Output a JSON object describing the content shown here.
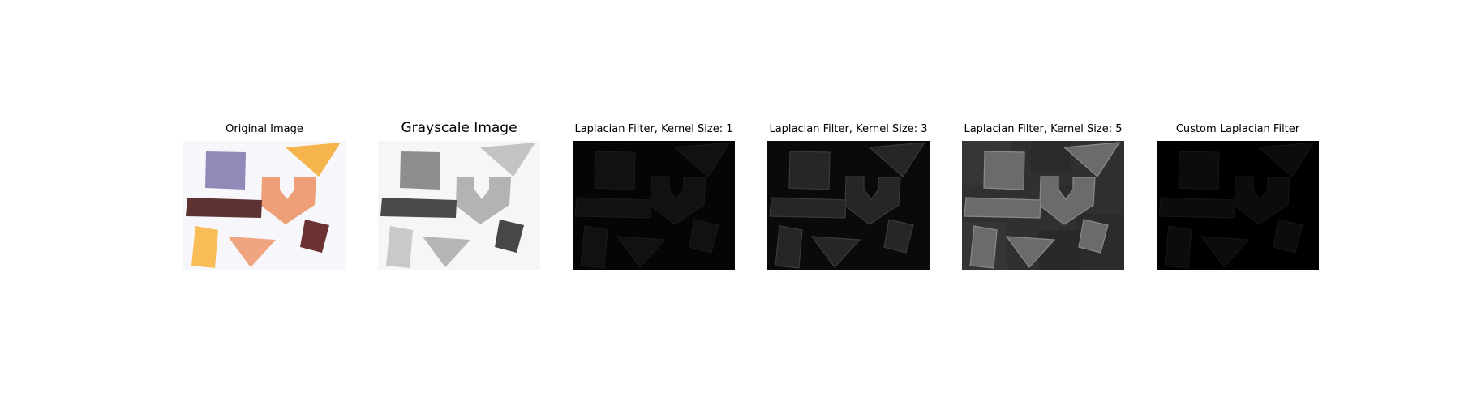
{
  "figure": {
    "panels": [
      {
        "title": "Original Image"
      },
      {
        "title": "Grayscale Image"
      },
      {
        "title": "Laplacian Filter, Kernel Size: 1"
      },
      {
        "title": "Laplacian Filter, Kernel Size: 3"
      },
      {
        "title": "Laplacian Filter, Kernel Size: 5"
      },
      {
        "title": "Custom Laplacian Filter"
      }
    ]
  },
  "shape_colors": {
    "square": "#8f8ab8",
    "triangle_top_right": "#f6b54c",
    "u_shape": "#ef9f78",
    "bar": "#5c3232",
    "quad_right": "#6a3230",
    "card_left": "#f8bd57",
    "triangle_bottom": "#efa581",
    "background": "#f7f6fa"
  }
}
